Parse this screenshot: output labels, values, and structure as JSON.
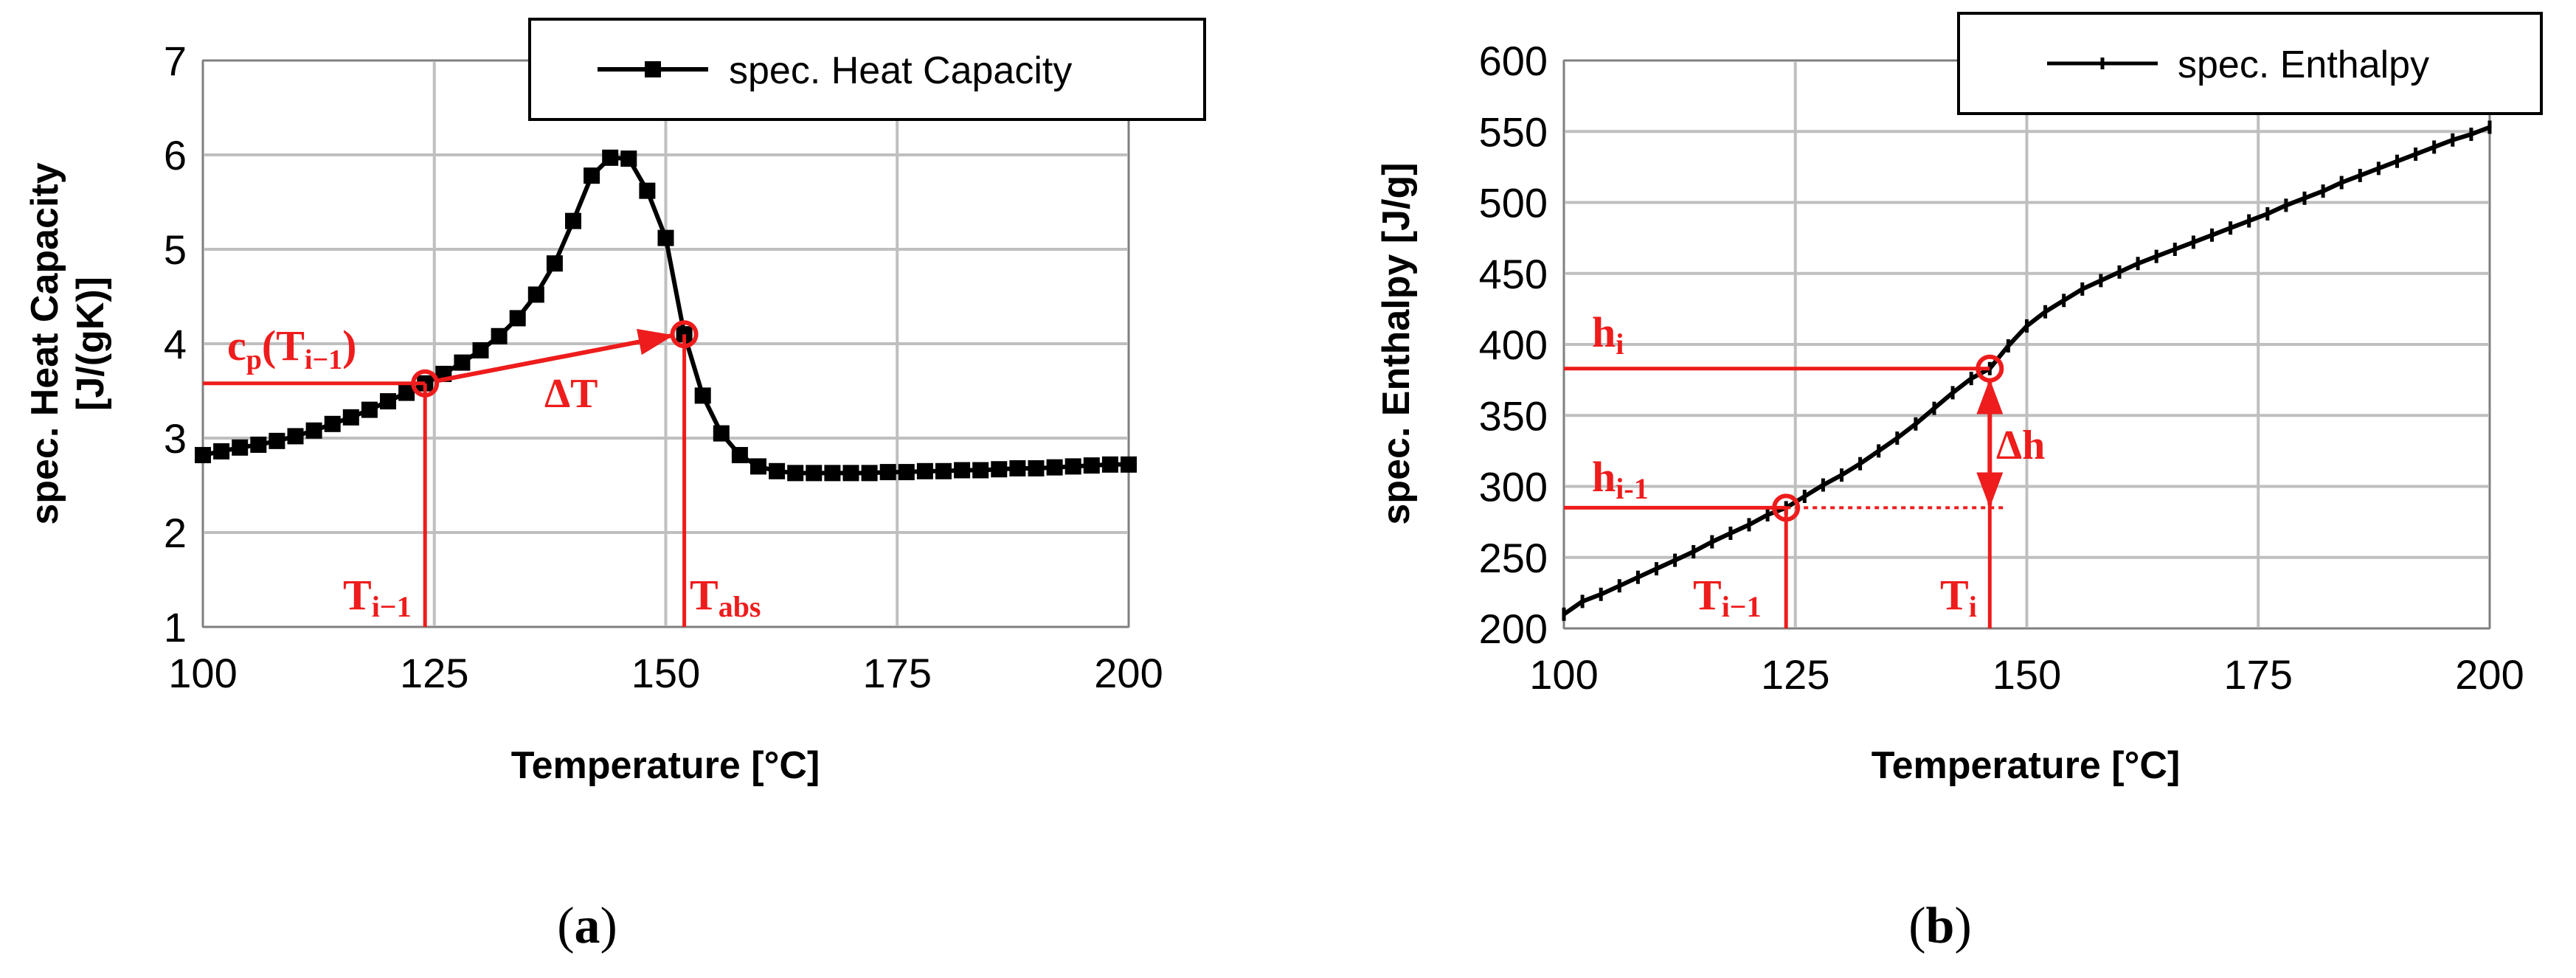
{
  "chart_data": [
    {
      "type": "line",
      "panel": "a",
      "caption": {
        "open": "(",
        "letter": "a",
        "close": ")"
      },
      "series": [
        {
          "name": "spec. Heat Capacity",
          "marker": "square",
          "x": [
            100,
            102,
            104,
            106,
            108,
            110,
            112,
            114,
            116,
            118,
            120,
            122,
            124,
            126,
            128,
            130,
            132,
            134,
            136,
            138,
            140,
            142,
            144,
            146,
            148,
            150,
            152,
            154,
            156,
            158,
            160,
            162,
            164,
            166,
            168,
            170,
            172,
            174,
            176,
            178,
            180,
            182,
            184,
            186,
            188,
            190,
            192,
            194,
            196,
            198,
            200
          ],
          "values": [
            2.82,
            2.86,
            2.9,
            2.93,
            2.97,
            3.02,
            3.08,
            3.15,
            3.22,
            3.3,
            3.39,
            3.48,
            3.58,
            3.68,
            3.8,
            3.93,
            4.08,
            4.27,
            4.52,
            4.85,
            5.3,
            5.78,
            5.97,
            5.96,
            5.62,
            5.12,
            4.1,
            3.45,
            3.05,
            2.82,
            2.7,
            2.65,
            2.63,
            2.63,
            2.63,
            2.63,
            2.63,
            2.64,
            2.64,
            2.65,
            2.65,
            2.66,
            2.66,
            2.67,
            2.68,
            2.68,
            2.69,
            2.7,
            2.71,
            2.72,
            2.72
          ]
        }
      ],
      "xlabel": "Temperature [°C]",
      "ylabel_line1": "spec. Heat Capacity",
      "ylabel_line2": "[J/(gK)]",
      "xlim": [
        100,
        200
      ],
      "ylim": [
        1,
        7
      ],
      "xticks": [
        100,
        125,
        150,
        175,
        200
      ],
      "yticks": [
        1,
        2,
        3,
        4,
        5,
        6,
        7
      ],
      "grid": true,
      "legend_position": "top-right",
      "annotations": {
        "point_a": {
          "x": 124,
          "y": 3.58
        },
        "point_b": {
          "x": 152,
          "y": 4.1
        },
        "cp_label": {
          "base": "c",
          "sub": "p",
          "open": "(T",
          "sub2": "i−1",
          "close": ")"
        },
        "delta_label": "ΔT",
        "t_prev_label": {
          "base": "T",
          "sub": "i−1"
        },
        "t_abs_label": {
          "base": "T",
          "sub": "abs"
        }
      }
    },
    {
      "type": "line",
      "panel": "b",
      "caption": {
        "open": "(",
        "letter": "b",
        "close": ")"
      },
      "series": [
        {
          "name": "spec. Enthalpy",
          "marker": "tick",
          "x": [
            100,
            102,
            104,
            106,
            108,
            110,
            112,
            114,
            116,
            118,
            120,
            122,
            124,
            126,
            128,
            130,
            132,
            134,
            136,
            138,
            140,
            142,
            144,
            146,
            148,
            150,
            152,
            154,
            156,
            158,
            160,
            162,
            164,
            166,
            168,
            170,
            172,
            174,
            176,
            178,
            180,
            182,
            184,
            186,
            188,
            190,
            192,
            194,
            196,
            198,
            200
          ],
          "values": [
            210,
            219,
            224,
            230,
            236,
            242,
            248,
            254,
            261,
            267,
            273,
            280,
            285,
            293,
            301,
            308,
            316,
            325,
            334,
            344,
            355,
            366,
            376,
            383,
            399,
            413,
            423,
            431,
            439,
            445,
            451,
            457,
            462,
            467,
            472,
            477,
            482,
            487,
            492,
            498,
            503,
            508,
            514,
            519,
            524,
            529,
            534,
            539,
            544,
            548,
            553
          ]
        }
      ],
      "xlabel": "Temperature [°C]",
      "ylabel": "spec. Enthalpy [J/g]",
      "xlim": [
        100,
        200
      ],
      "ylim": [
        200,
        600
      ],
      "xticks": [
        100,
        125,
        150,
        175,
        200
      ],
      "yticks": [
        200,
        250,
        300,
        350,
        400,
        450,
        500,
        550,
        600
      ],
      "grid": true,
      "legend_position": "top-right",
      "annotations": {
        "point_a": {
          "x": 124,
          "y": 285
        },
        "point_b": {
          "x": 146,
          "y": 383
        },
        "h_i_label": {
          "base": "h",
          "sub": "i"
        },
        "h_prev_label": {
          "base": "h",
          "sub": "i-1"
        },
        "delta_label": "Δh",
        "t_prev_label": {
          "base": "T",
          "sub": "i−1"
        },
        "t_i_label": {
          "base": "T",
          "sub": "i"
        }
      }
    }
  ],
  "colors": {
    "annotation": "#ee1c1c",
    "series": "#000000",
    "grid": "#bfbfbf"
  }
}
